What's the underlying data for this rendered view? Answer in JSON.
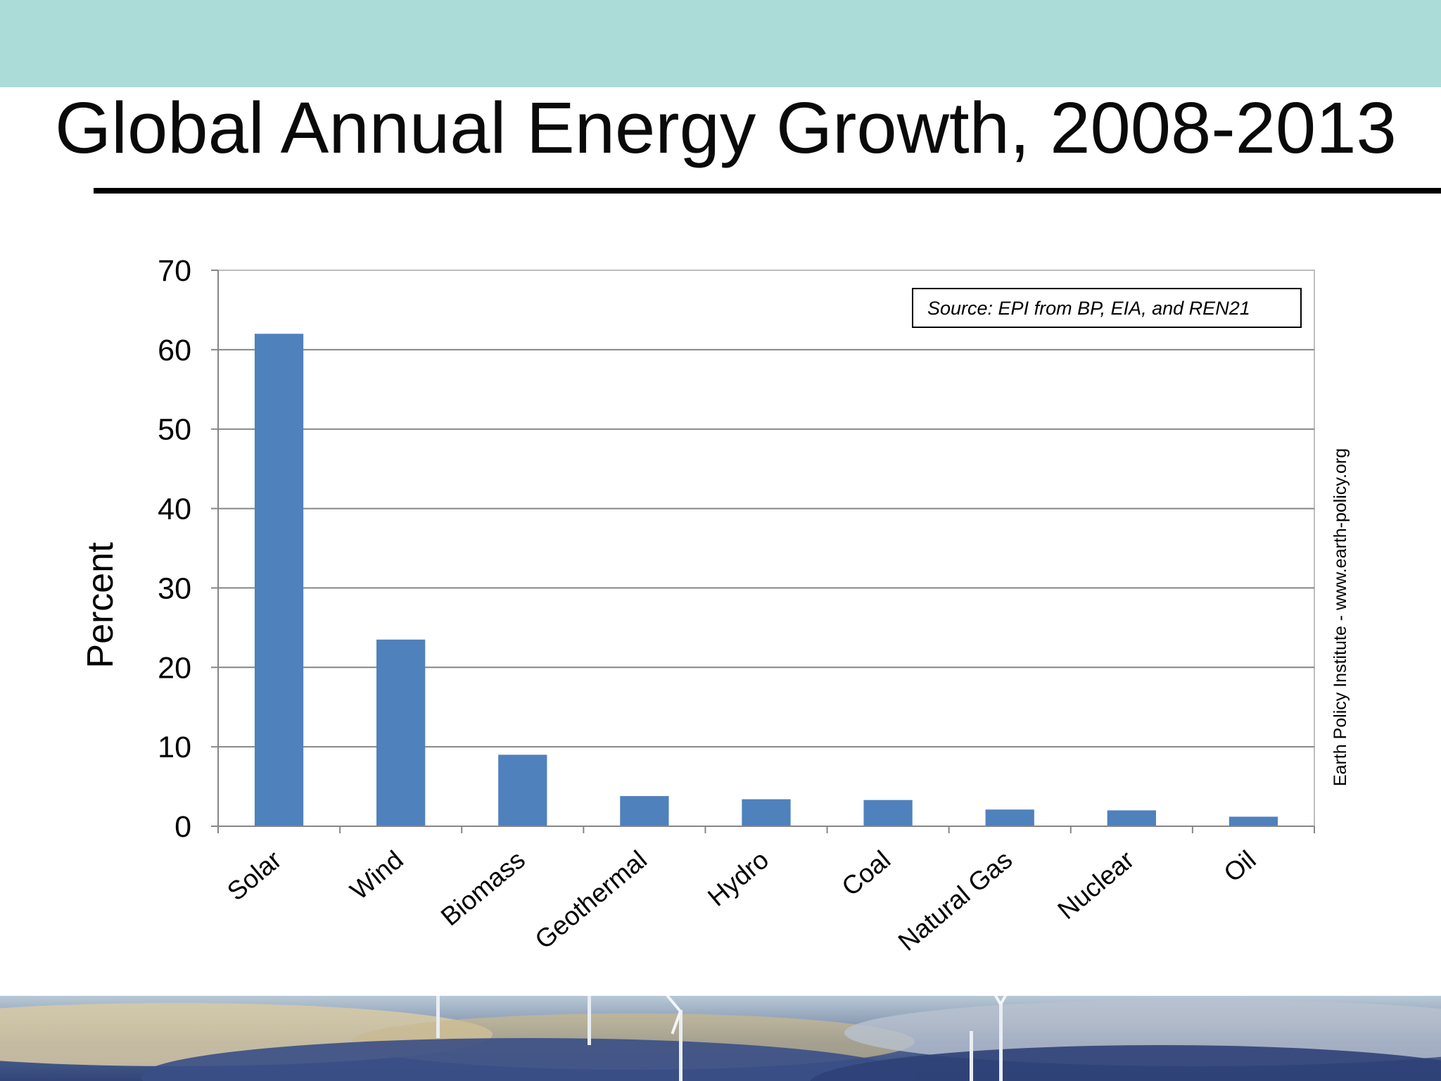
{
  "slide": {
    "title": "Global Annual Energy Growth, 2008-2013",
    "colors": {
      "top_band": "#acdcd8",
      "bar": "#4f81bd",
      "gridline": "#868686"
    }
  },
  "chart_data": {
    "type": "bar",
    "title": "",
    "xlabel": "",
    "ylabel": "Percent",
    "ylim": [
      0,
      70
    ],
    "yticks": [
      0,
      10,
      20,
      30,
      40,
      50,
      60,
      70
    ],
    "grid": true,
    "categories": [
      "Solar",
      "Wind",
      "Biomass",
      "Geothermal",
      "Hydro",
      "Coal",
      "Natural Gas",
      "Nuclear",
      "Oil"
    ],
    "values": [
      62,
      23.5,
      9,
      3.8,
      3.4,
      3.3,
      2.1,
      2.0,
      1.2
    ],
    "annotations": {
      "source": "Source: EPI from BP, EIA, and REN21",
      "side_credit": "Earth Policy Institute - www.earth-policy.org"
    }
  }
}
